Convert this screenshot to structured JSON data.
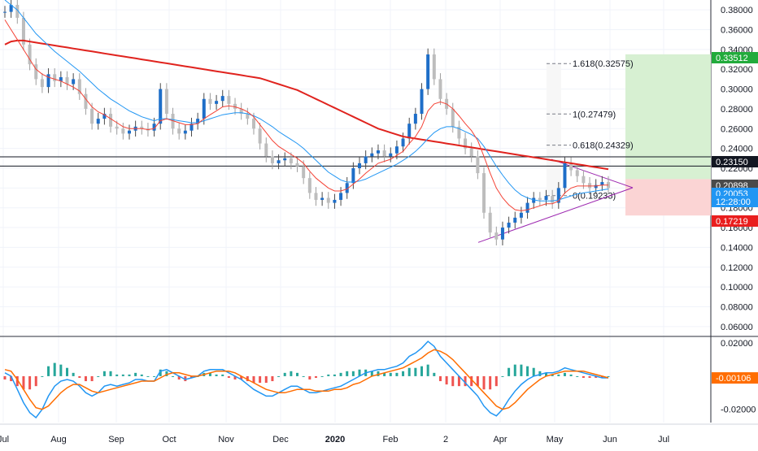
{
  "chart_data": {
    "type": "candlestick",
    "price_axis": {
      "ticks": [
        "0.38000",
        "0.36000",
        "0.34000",
        "0.32000",
        "0.30000",
        "0.28000",
        "0.26000",
        "0.24000",
        "0.22000",
        "0.20000",
        "0.18000",
        "0.16000",
        "0.14000",
        "0.12000",
        "0.10000",
        "0.08000",
        "0.06000"
      ],
      "range": [
        0.05,
        0.39
      ]
    },
    "macd_axis": {
      "ticks": [
        "0.02000",
        "0.00000",
        "-0.02000"
      ],
      "range": [
        -0.028,
        0.024
      ]
    },
    "time_axis": [
      "Jul",
      "Aug",
      "Sep",
      "Oct",
      "Nov",
      "Dec",
      "2020",
      "Feb",
      "2",
      "Apr",
      "May",
      "Jun",
      "Jul"
    ],
    "price_labels": [
      {
        "text": "0.33512",
        "color": "#22ab3c"
      },
      {
        "text": "0.23150",
        "color": "#131722"
      },
      {
        "text": "0.20898",
        "color": "#4a4a4a"
      },
      {
        "text": "0.20053",
        "color": "#2196f3"
      },
      {
        "text": "12:28:00",
        "color": "#2196f3"
      },
      {
        "text": "0.17219",
        "color": "#e91e1e"
      }
    ],
    "macd_label": {
      "text": "-0.00106",
      "color": "#ff6d00"
    },
    "fib_levels": [
      {
        "label": "1.618(0.32575)",
        "value": 0.32575
      },
      {
        "label": "1(0.27479)",
        "value": 0.27479
      },
      {
        "label": "0.618(0.24329)",
        "value": 0.24329
      },
      {
        "label": "0(0.19233)",
        "value": 0.19233
      }
    ],
    "horizontal_lines": [
      0.2315,
      0.2222
    ],
    "position": {
      "entry": 0.20898,
      "target": 0.33512,
      "stop": 0.17219
    },
    "series": [
      {
        "name": "Price",
        "values": [
          0.378,
          0.385,
          0.372,
          0.345,
          0.325,
          0.31,
          0.302,
          0.315,
          0.308,
          0.312,
          0.305,
          0.31,
          0.295,
          0.28,
          0.265,
          0.27,
          0.275,
          0.262,
          0.26,
          0.255,
          0.258,
          0.262,
          0.26,
          0.258,
          0.265,
          0.3,
          0.275,
          0.26,
          0.255,
          0.258,
          0.265,
          0.27,
          0.29,
          0.285,
          0.288,
          0.293,
          0.285,
          0.28,
          0.275,
          0.27,
          0.26,
          0.245,
          0.232,
          0.225,
          0.228,
          0.23,
          0.225,
          0.222,
          0.21,
          0.195,
          0.188,
          0.19,
          0.185,
          0.188,
          0.195,
          0.205,
          0.22,
          0.225,
          0.232,
          0.235,
          0.238,
          0.232,
          0.235,
          0.242,
          0.25,
          0.265,
          0.275,
          0.3,
          0.335,
          0.31,
          0.29,
          0.28,
          0.262,
          0.25,
          0.24,
          0.232,
          0.215,
          0.175,
          0.155,
          0.148,
          0.16,
          0.165,
          0.17,
          0.175,
          0.185,
          0.19,
          0.188,
          0.192,
          0.185,
          0.2,
          0.225,
          0.218,
          0.212,
          0.205,
          0.2,
          0.203,
          0.206,
          0.2
        ]
      },
      {
        "name": "EMA 20",
        "values": [
          0.37,
          0.36,
          0.35,
          0.34,
          0.33,
          0.32,
          0.315,
          0.312,
          0.31,
          0.308,
          0.305,
          0.302,
          0.298,
          0.29,
          0.282,
          0.277,
          0.274,
          0.27,
          0.266,
          0.262,
          0.26,
          0.26,
          0.26,
          0.259,
          0.26,
          0.268,
          0.27,
          0.268,
          0.266,
          0.264,
          0.264,
          0.265,
          0.27,
          0.274,
          0.278,
          0.282,
          0.283,
          0.282,
          0.28,
          0.277,
          0.272,
          0.264,
          0.256,
          0.248,
          0.242,
          0.238,
          0.234,
          0.23,
          0.225,
          0.217,
          0.21,
          0.205,
          0.2,
          0.197,
          0.197,
          0.199,
          0.204,
          0.209,
          0.215,
          0.22,
          0.225,
          0.227,
          0.229,
          0.233,
          0.237,
          0.245,
          0.252,
          0.262,
          0.278,
          0.285,
          0.287,
          0.285,
          0.28,
          0.273,
          0.265,
          0.258,
          0.248,
          0.232,
          0.215,
          0.2,
          0.19,
          0.183,
          0.178,
          0.177,
          0.178,
          0.18,
          0.182,
          0.184,
          0.184,
          0.187,
          0.195,
          0.2,
          0.202,
          0.202,
          0.202,
          0.202,
          0.203,
          0.203
        ]
      },
      {
        "name": "EMA 50",
        "values": [
          0.39,
          0.385,
          0.38,
          0.372,
          0.364,
          0.356,
          0.35,
          0.344,
          0.338,
          0.333,
          0.328,
          0.323,
          0.318,
          0.312,
          0.306,
          0.3,
          0.295,
          0.29,
          0.286,
          0.282,
          0.278,
          0.275,
          0.272,
          0.27,
          0.268,
          0.27,
          0.27,
          0.269,
          0.268,
          0.267,
          0.266,
          0.266,
          0.268,
          0.27,
          0.272,
          0.274,
          0.275,
          0.276,
          0.276,
          0.275,
          0.273,
          0.27,
          0.266,
          0.262,
          0.257,
          0.253,
          0.249,
          0.245,
          0.24,
          0.234,
          0.228,
          0.222,
          0.216,
          0.212,
          0.208,
          0.206,
          0.206,
          0.207,
          0.209,
          0.212,
          0.215,
          0.218,
          0.221,
          0.224,
          0.228,
          0.232,
          0.237,
          0.243,
          0.25,
          0.256,
          0.26,
          0.262,
          0.262,
          0.26,
          0.257,
          0.254,
          0.25,
          0.242,
          0.232,
          0.222,
          0.213,
          0.205,
          0.198,
          0.193,
          0.19,
          0.188,
          0.187,
          0.187,
          0.187,
          0.188,
          0.19,
          0.192,
          0.194,
          0.195,
          0.196,
          0.197,
          0.198,
          0.199
        ]
      },
      {
        "name": "MA 200",
        "values": [
          0.345,
          0.348,
          0.349,
          0.349,
          0.348,
          0.347,
          0.346,
          0.345,
          0.344,
          0.343,
          0.342,
          0.341,
          0.34,
          0.339,
          0.338,
          0.337,
          0.336,
          0.335,
          0.334,
          0.333,
          0.332,
          0.331,
          0.33,
          0.329,
          0.328,
          0.327,
          0.326,
          0.325,
          0.324,
          0.323,
          0.322,
          0.321,
          0.32,
          0.319,
          0.318,
          0.317,
          0.316,
          0.315,
          0.314,
          0.313,
          0.312,
          0.311,
          0.309,
          0.307,
          0.305,
          0.303,
          0.301,
          0.299,
          0.296,
          0.293,
          0.29,
          0.287,
          0.284,
          0.281,
          0.278,
          0.275,
          0.272,
          0.269,
          0.266,
          0.263,
          0.26,
          0.258,
          0.256,
          0.254,
          0.252,
          0.251,
          0.25,
          0.249,
          0.248,
          0.247,
          0.246,
          0.245,
          0.244,
          0.243,
          0.242,
          0.241,
          0.24,
          0.239,
          0.238,
          0.237,
          0.236,
          0.235,
          0.234,
          0.233,
          0.232,
          0.231,
          0.23,
          0.229,
          0.228,
          0.227,
          0.226,
          0.225,
          0.224,
          0.223,
          0.222,
          0.221,
          0.22,
          0.219
        ]
      },
      {
        "name": "MACD",
        "values": [
          0.002,
          0.0,
          -0.008,
          -0.016,
          -0.022,
          -0.025,
          -0.02,
          -0.012,
          -0.006,
          -0.003,
          -0.002,
          -0.003,
          -0.006,
          -0.01,
          -0.012,
          -0.01,
          -0.006,
          -0.005,
          -0.006,
          -0.005,
          -0.004,
          -0.002,
          -0.002,
          -0.003,
          -0.003,
          0.003,
          0.004,
          0.002,
          0.0,
          -0.002,
          -0.001,
          0.0,
          0.003,
          0.004,
          0.004,
          0.004,
          0.002,
          0.0,
          -0.002,
          -0.005,
          -0.008,
          -0.01,
          -0.012,
          -0.012,
          -0.01,
          -0.008,
          -0.006,
          -0.006,
          -0.008,
          -0.01,
          -0.01,
          -0.009,
          -0.008,
          -0.007,
          -0.006,
          -0.004,
          -0.002,
          0.0,
          0.002,
          0.003,
          0.004,
          0.004,
          0.005,
          0.006,
          0.008,
          0.012,
          0.014,
          0.017,
          0.021,
          0.018,
          0.012,
          0.008,
          0.004,
          0.0,
          -0.004,
          -0.008,
          -0.012,
          -0.018,
          -0.022,
          -0.024,
          -0.02,
          -0.014,
          -0.009,
          -0.005,
          -0.002,
          0.0,
          0.001,
          0.002,
          0.002,
          0.003,
          0.005,
          0.004,
          0.003,
          0.002,
          0.001,
          0.0,
          -0.001,
          -0.001
        ]
      },
      {
        "name": "Signal",
        "values": [
          0.004,
          0.003,
          -0.002,
          -0.008,
          -0.014,
          -0.019,
          -0.02,
          -0.018,
          -0.014,
          -0.01,
          -0.007,
          -0.005,
          -0.005,
          -0.007,
          -0.009,
          -0.01,
          -0.009,
          -0.008,
          -0.007,
          -0.006,
          -0.005,
          -0.004,
          -0.003,
          -0.003,
          -0.003,
          -0.001,
          0.001,
          0.002,
          0.002,
          0.001,
          0.0,
          0.0,
          0.001,
          0.002,
          0.003,
          0.003,
          0.003,
          0.002,
          0.0,
          -0.002,
          -0.004,
          -0.006,
          -0.008,
          -0.009,
          -0.01,
          -0.01,
          -0.009,
          -0.008,
          -0.008,
          -0.008,
          -0.009,
          -0.009,
          -0.009,
          -0.008,
          -0.008,
          -0.007,
          -0.005,
          -0.004,
          -0.002,
          0.0,
          0.001,
          0.002,
          0.003,
          0.004,
          0.005,
          0.007,
          0.009,
          0.011,
          0.014,
          0.016,
          0.015,
          0.013,
          0.01,
          0.006,
          0.002,
          -0.002,
          -0.006,
          -0.01,
          -0.014,
          -0.018,
          -0.02,
          -0.019,
          -0.016,
          -0.012,
          -0.008,
          -0.005,
          -0.002,
          0.0,
          0.001,
          0.002,
          0.003,
          0.003,
          0.003,
          0.003,
          0.002,
          0.001,
          0.0,
          -0.001
        ]
      }
    ]
  }
}
